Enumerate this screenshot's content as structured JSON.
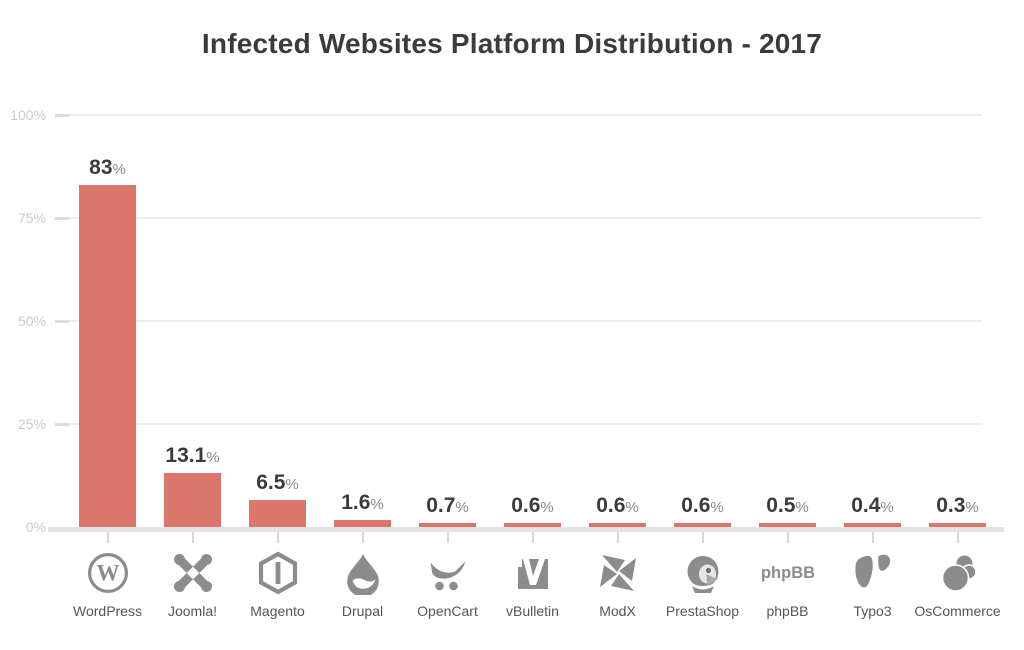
{
  "title": "Infected Websites Platform Distribution - 2017",
  "chart_data": {
    "type": "bar",
    "title": "Infected Websites Platform Distribution - 2017",
    "categories": [
      "WordPress",
      "Joomla!",
      "Magento",
      "Drupal",
      "OpenCart",
      "vBulletin",
      "ModX",
      "PrestaShop",
      "phpBB",
      "Typo3",
      "OsCommerce"
    ],
    "values": [
      83,
      13.1,
      6.5,
      1.6,
      0.7,
      0.6,
      0.6,
      0.6,
      0.5,
      0.4,
      0.3
    ],
    "value_labels": [
      "83%",
      "13.1%",
      "6.5%",
      "1.6%",
      "0.7%",
      "0.6%",
      "0.6%",
      "0.6%",
      "0.5%",
      "0.4%",
      "0.3%"
    ],
    "icons": [
      "wordpress-icon",
      "joomla-icon",
      "magento-icon",
      "drupal-icon",
      "opencart-icon",
      "vbulletin-icon",
      "modx-icon",
      "prestashop-icon",
      "phpbb-icon",
      "typo3-icon",
      "oscommerce-icon"
    ],
    "y_ticks": [
      "0%",
      "25%",
      "50%",
      "75%",
      "100%"
    ],
    "ylim": [
      0,
      100
    ],
    "grid": true,
    "legend": "none",
    "xlabel": "",
    "ylabel": "",
    "bar_color": "#db766b",
    "value_number_color": "#3b3b3b",
    "percent_sign_color": "#8a8a8a",
    "axis_tick_label_color": "#cbcbcb",
    "icon_color": "#8c8c8c",
    "x_label_color": "#555555"
  }
}
